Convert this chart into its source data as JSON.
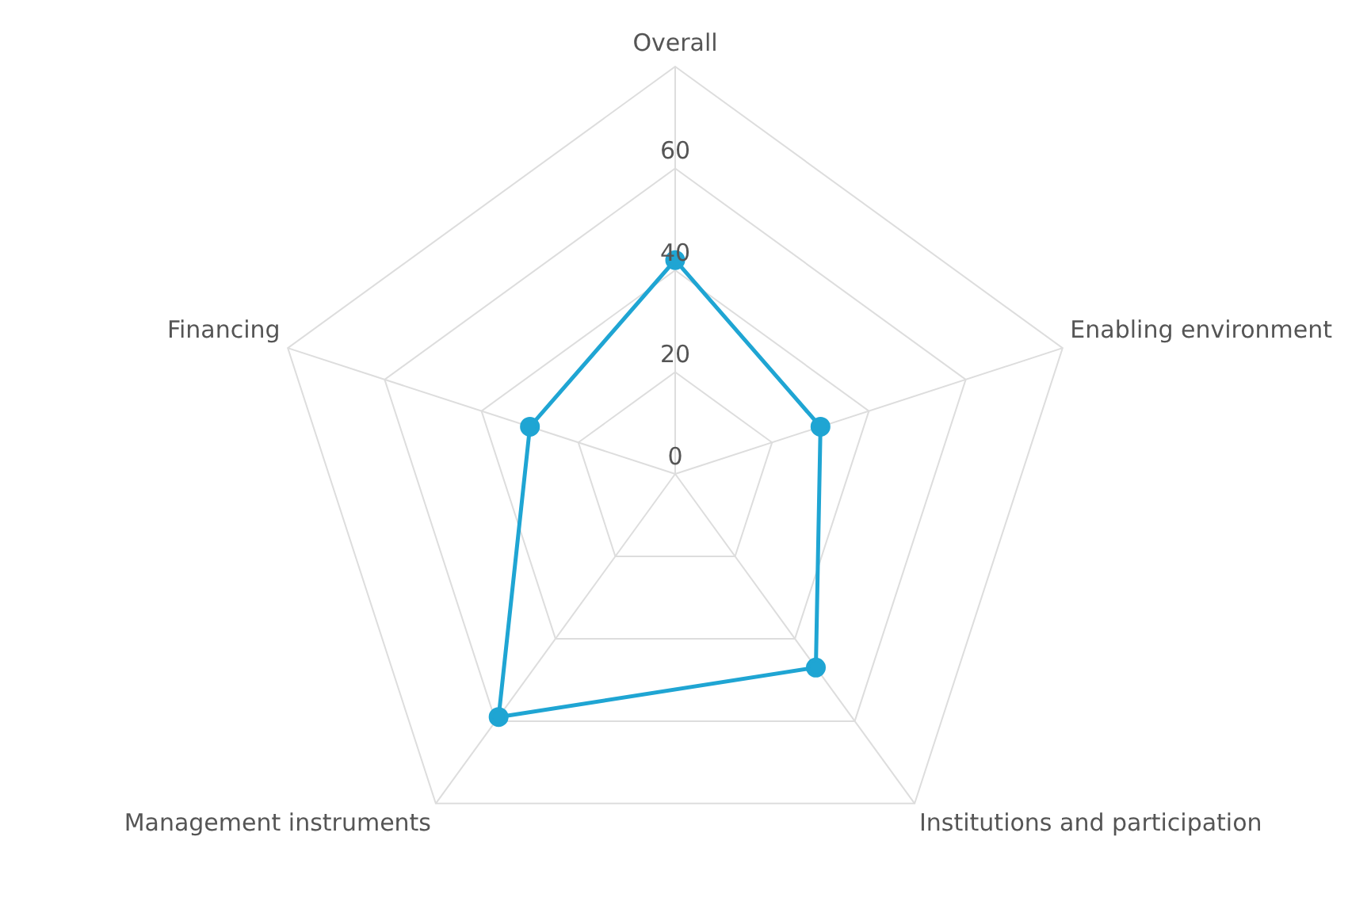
{
  "chart_data": {
    "type": "radar",
    "categories": [
      "Overall",
      "Enabling environment",
      "Institutions and participation",
      "Management instruments",
      "Financing"
    ],
    "series": [
      {
        "color": "#1fa5d3",
        "values": [
          42,
          30,
          47,
          59,
          30
        ]
      }
    ],
    "ylim": [
      0,
      80
    ],
    "yticks": [
      0,
      20,
      40,
      60
    ],
    "grid": true,
    "legend": false,
    "marker": "circle"
  }
}
